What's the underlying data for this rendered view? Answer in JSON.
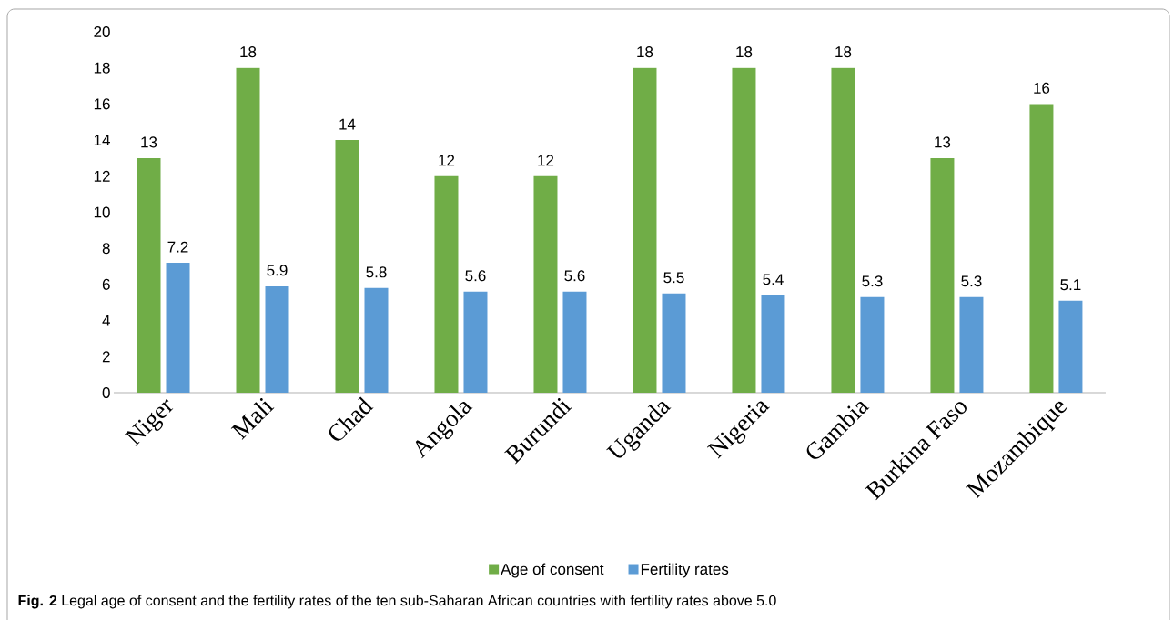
{
  "chart_data": {
    "type": "bar",
    "categories": [
      "Niger",
      "Mali",
      "Chad",
      "Angola",
      "Burundi",
      "Uganda",
      "Nigeria",
      "Gambia",
      "Burkina Faso",
      "Mozambique"
    ],
    "series": [
      {
        "name": "Age of consent",
        "color": "#70ad47",
        "values": [
          13,
          18,
          14,
          12,
          12,
          18,
          18,
          18,
          13,
          16
        ]
      },
      {
        "name": "Fertility rates",
        "color": "#5b9bd5",
        "values": [
          7.2,
          5.9,
          5.8,
          5.6,
          5.6,
          5.5,
          5.4,
          5.3,
          5.3,
          5.1
        ]
      }
    ],
    "ylim": [
      0,
      20
    ],
    "yticks": [
      0,
      2,
      4,
      6,
      8,
      10,
      12,
      14,
      16,
      18,
      20
    ],
    "data_labels": true,
    "legend": "bottom",
    "annotations": [
      "**Fig. 2**  Legal age of consent and the fertility rates of the ten sub-Saharan African countries with fertility rates above 5.0"
    ]
  }
}
